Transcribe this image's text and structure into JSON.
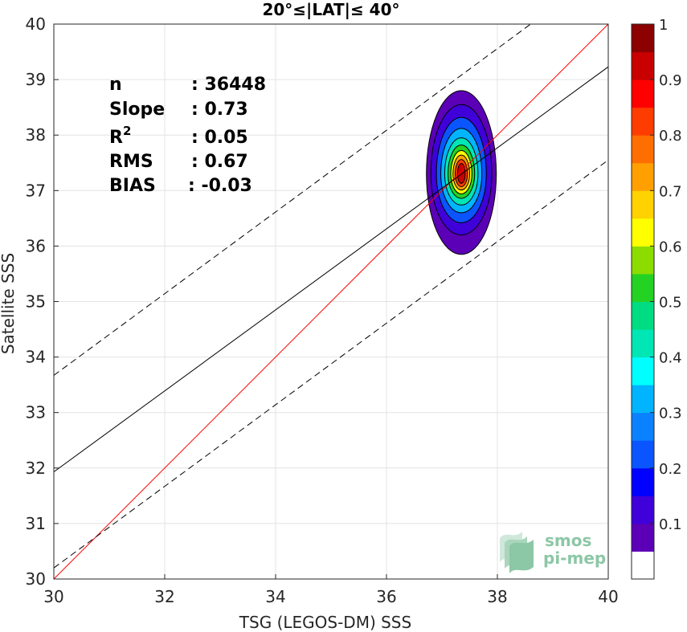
{
  "chart_data": {
    "type": "scatter",
    "title": "20°≤|LAT|≤ 40°",
    "xlabel": "TSG (LEGOS-DM) SSS",
    "ylabel": "Satellite SSS",
    "xlim": [
      30,
      40
    ],
    "ylim": [
      30,
      40
    ],
    "xticks": [
      "30",
      "32",
      "34",
      "36",
      "38",
      "40"
    ],
    "yticks": [
      "30",
      "31",
      "32",
      "33",
      "34",
      "35",
      "36",
      "37",
      "38",
      "39",
      "40"
    ],
    "grid": true,
    "stats": [
      {
        "label": "n",
        "value": ": 36448"
      },
      {
        "label": "Slope",
        "value": ": 0.73"
      },
      {
        "label": "R",
        "sup": "2",
        "value": ": 0.05"
      },
      {
        "label": "RMS",
        "value": ": 0.67"
      },
      {
        "label": "BIAS",
        "value": ": -0.03"
      }
    ],
    "lines": {
      "identity": {
        "color": "#ff0000",
        "x": [
          30,
          40
        ],
        "y": [
          30,
          40
        ]
      },
      "fit": {
        "color": "#000000",
        "x": [
          30,
          40
        ],
        "y": [
          31.93,
          39.23
        ]
      },
      "upper_bound": {
        "color": "#000000",
        "dash": true,
        "x": [
          30,
          38.6
        ],
        "y": [
          33.67,
          40
        ]
      },
      "lower_bound": {
        "color": "#000000",
        "dash": true,
        "x": [
          30,
          40
        ],
        "y": [
          30.2,
          37.55
        ]
      }
    },
    "density_contours": {
      "center": [
        37.35,
        37.3
      ],
      "levels": [
        {
          "level": 0.1,
          "color": "#5b00b6",
          "rx": 0.63,
          "ry_up": 1.5,
          "ry_down": 1.45
        },
        {
          "level": 0.15,
          "color": "#3f00d9",
          "rx": 0.55,
          "ry_up": 1.25,
          "ry_down": 1.1
        },
        {
          "level": 0.25,
          "color": "#0a55ff",
          "rx": 0.45,
          "ry_up": 1.02,
          "ry_down": 0.88
        },
        {
          "level": 0.35,
          "color": "#00b4ff",
          "rx": 0.37,
          "ry_up": 0.82,
          "ry_down": 0.7
        },
        {
          "level": 0.45,
          "color": "#00e6b4",
          "rx": 0.3,
          "ry_up": 0.65,
          "ry_down": 0.56
        },
        {
          "level": 0.55,
          "color": "#23d223",
          "rx": 0.24,
          "ry_up": 0.52,
          "ry_down": 0.44
        },
        {
          "level": 0.65,
          "color": "#ffff00",
          "rx": 0.19,
          "ry_up": 0.42,
          "ry_down": 0.36
        },
        {
          "level": 0.75,
          "color": "#ffa000",
          "rx": 0.15,
          "ry_up": 0.34,
          "ry_down": 0.29
        },
        {
          "level": 0.85,
          "color": "#ff3c00",
          "rx": 0.11,
          "ry_up": 0.26,
          "ry_down": 0.23
        },
        {
          "level": 0.95,
          "color": "#c80000",
          "rx": 0.07,
          "ry_up": 0.19,
          "ry_down": 0.17
        }
      ]
    },
    "colorbar": {
      "ticks": [
        "0.1",
        "0.2",
        "0.3",
        "0.4",
        "0.5",
        "0.6",
        "0.7",
        "0.8",
        "0.9",
        "1"
      ],
      "range": [
        0,
        1
      ],
      "colors": [
        "#ffffff",
        "#5b00b6",
        "#3f00d9",
        "#0000ff",
        "#0a55ff",
        "#0a82ff",
        "#00b4ff",
        "#00ffff",
        "#00e6b4",
        "#00dc82",
        "#23d223",
        "#8cdc00",
        "#ffff00",
        "#ffd200",
        "#ffa000",
        "#ff6e00",
        "#ff3c00",
        "#ff0000",
        "#c80000",
        "#8c0000"
      ]
    },
    "logo": [
      "smos",
      "pi-mep"
    ]
  }
}
